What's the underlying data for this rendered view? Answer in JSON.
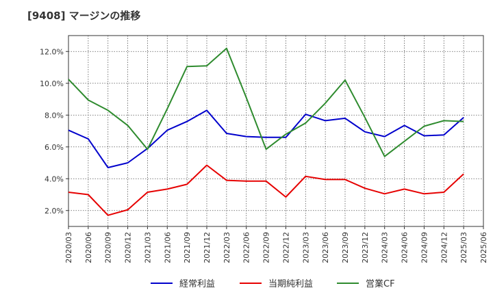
{
  "title": "[9408]  マージンの推移",
  "chart_data": {
    "type": "line",
    "title": "[9408]  マージンの推移",
    "xlabel": "",
    "ylabel": "",
    "x": [
      "2020/03",
      "2020/06",
      "2020/09",
      "2020/12",
      "2021/03",
      "2021/06",
      "2021/09",
      "2021/12",
      "2022/03",
      "2022/06",
      "2022/09",
      "2022/12",
      "2023/03",
      "2023/06",
      "2023/09",
      "2023/12",
      "2024/03",
      "2024/06",
      "2024/09",
      "2024/12",
      "2025/03",
      "2025/06"
    ],
    "ylim": [
      1.0,
      13.0
    ],
    "yticks": [
      2.0,
      4.0,
      6.0,
      8.0,
      10.0,
      12.0
    ],
    "ytick_labels": [
      "2.0%",
      "4.0%",
      "6.0%",
      "8.0%",
      "10.0%",
      "12.0%"
    ],
    "grid": true,
    "legend_position": "bottom",
    "series": [
      {
        "name": "経常利益",
        "color": "#0000cc",
        "values": [
          7.05,
          6.5,
          4.7,
          5.0,
          5.9,
          7.05,
          7.6,
          8.3,
          6.85,
          6.65,
          6.6,
          6.6,
          8.05,
          7.65,
          7.8,
          6.95,
          6.65,
          7.35,
          6.7,
          6.75,
          7.85,
          null
        ]
      },
      {
        "name": "当期純利益",
        "color": "#e60000",
        "values": [
          3.15,
          3.0,
          1.7,
          2.05,
          3.15,
          3.35,
          3.65,
          4.85,
          3.9,
          3.85,
          3.85,
          2.85,
          4.15,
          3.95,
          3.95,
          3.4,
          3.05,
          3.35,
          3.05,
          3.15,
          4.3,
          null
        ]
      },
      {
        "name": "営業CF",
        "color": "#2e8b2e",
        "values": [
          10.25,
          8.95,
          8.3,
          7.35,
          5.85,
          8.4,
          11.05,
          11.1,
          12.2,
          9.1,
          5.85,
          6.8,
          7.5,
          8.75,
          10.2,
          7.85,
          5.4,
          6.35,
          7.3,
          7.65,
          7.6,
          null
        ]
      }
    ]
  }
}
